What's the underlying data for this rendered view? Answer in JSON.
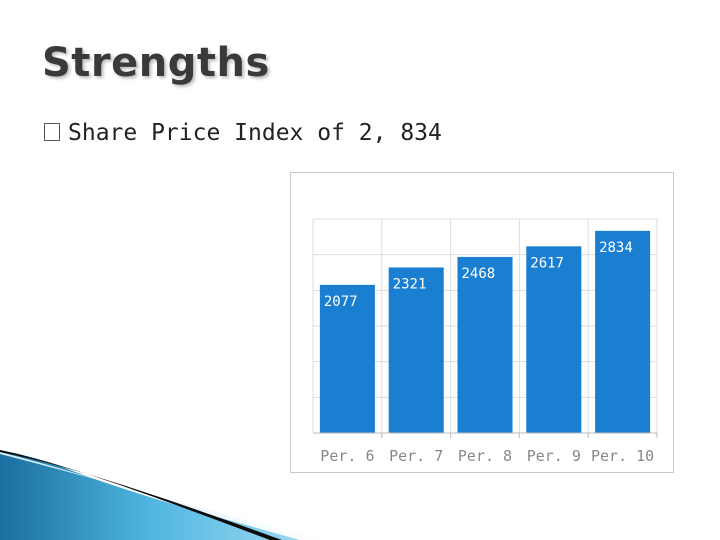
{
  "slide": {
    "title": "Strengths",
    "bullet_marker": "□",
    "bullet_text": "Share Price Index of 2, 834"
  },
  "colors": {
    "bar": "#1a7fd0",
    "label_text": "#ffffff",
    "grid": "#dddddd",
    "axis_text": "#888888",
    "title_text": "#3a3a3a"
  },
  "chart_data": {
    "type": "bar",
    "categories": [
      "Per. 6",
      "Per. 7",
      "Per. 8",
      "Per. 9",
      "Per. 10"
    ],
    "values": [
      2077,
      2321,
      2468,
      2617,
      2834
    ],
    "data_labels": [
      "2077",
      "2321",
      "2468",
      "2617",
      "2834"
    ],
    "title": "",
    "xlabel": "",
    "ylabel": "",
    "ylim": [
      0,
      3000
    ],
    "grid": true,
    "legend": "none"
  }
}
